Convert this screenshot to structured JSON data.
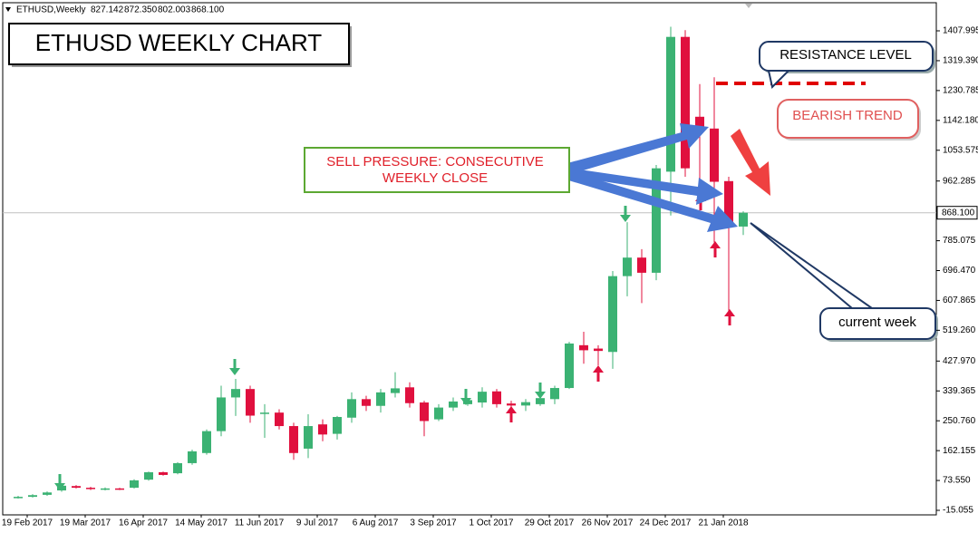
{
  "chart_data": {
    "type": "candlestick",
    "symbol": "ETHUSD,Weekly",
    "ohlc_readout": [
      827.142,
      {
        "value": 872.35,
        "label": "872.350"
      },
      802.003,
      {
        "value": 868.1,
        "label": "868.100"
      }
    ],
    "title": "ETHUSD WEEKLY CHART",
    "annotations": [
      "RESISTANCE LEVEL",
      "BEARISH TREND",
      "SELL PRESSURE: CONSECUTIVE",
      "WEEKLY CLOSE",
      "current week"
    ],
    "categories": [
      null,
      "19 Feb 2017",
      null,
      null,
      null,
      "19 Mar 2017",
      null,
      null,
      null,
      "16 Apr 2017",
      null,
      null,
      null,
      "14 May 2017",
      null,
      null,
      null,
      "11 Jun 2017",
      null,
      null,
      null,
      "9 Jul 2017",
      null,
      null,
      null,
      "6 Aug 2017",
      null,
      null,
      null,
      "3 Sep 2017",
      null,
      null,
      null,
      "1 Oct 2017",
      null,
      null,
      null,
      "29 Oct 2017",
      null,
      null,
      null,
      "26 Nov 2017",
      null,
      null,
      null,
      "24 Dec 2017",
      null,
      null,
      null,
      "21 Jan 2018",
      null
    ],
    "open": [
      22,
      25,
      31,
      44,
      57,
      52,
      47,
      50,
      52,
      76,
      98,
      95,
      125,
      155,
      220,
      320,
      345,
      272,
      275,
      235,
      168,
      240,
      212,
      260,
      315,
      295,
      333,
      350,
      305,
      255,
      290,
      300,
      305,
      338,
      302,
      296,
      300,
      315,
      348,
      475,
      465,
      455,
      680,
      735,
      690,
      990,
      1390,
      1153,
      1118,
      962,
      827.142
    ],
    "high": [
      28,
      33,
      41,
      62,
      60,
      55,
      53,
      52,
      77,
      100,
      100,
      128,
      165,
      225,
      355,
      375,
      355,
      300,
      285,
      245,
      270,
      255,
      265,
      335,
      325,
      345,
      395,
      365,
      310,
      300,
      320,
      318,
      350,
      345,
      310,
      315,
      325,
      355,
      485,
      515,
      475,
      695,
      840,
      760,
      1010,
      1420,
      1410,
      1250,
      1270,
      975,
      872.35
    ],
    "low": [
      20,
      23,
      28,
      40,
      50,
      45,
      44,
      45,
      50,
      73,
      88,
      92,
      120,
      150,
      205,
      265,
      245,
      200,
      225,
      135,
      140,
      190,
      195,
      245,
      280,
      275,
      320,
      290,
      205,
      250,
      280,
      295,
      290,
      290,
      285,
      280,
      295,
      300,
      345,
      420,
      415,
      405,
      620,
      600,
      668,
      860,
      975,
      870,
      780,
      570,
      802.003
    ],
    "close": [
      25,
      30,
      38,
      58,
      52,
      48,
      50,
      48,
      74,
      98,
      90,
      125,
      160,
      220,
      320,
      345,
      266,
      275,
      235,
      155,
      235,
      210,
      262,
      315,
      295,
      335,
      347,
      303,
      250,
      290,
      308,
      312,
      337,
      300,
      296,
      306,
      318,
      348,
      480,
      460,
      458,
      680,
      735,
      690,
      1000,
      1390,
      1000,
      1118,
      960,
      830,
      868.1
    ],
    "up_color": "#3bb273",
    "down_color": "#e0103e",
    "last_price": {
      "value": 868.1,
      "label": "868.100"
    },
    "ylim": [
      -28.5,
      1491.4
    ],
    "yticks": [
      1407.995,
      {
        "value": 1319.39,
        "label": "1319.390"
      },
      1230.785,
      {
        "value": 1142.18,
        "label": "1142.180"
      },
      1053.575,
      962.285,
      785.075,
      {
        "value": 696.47,
        "label": "696.470"
      },
      607.865,
      {
        "value": 519.26,
        "label": "519.260"
      },
      {
        "value": 427.97,
        "label": "427.970"
      },
      339.365,
      {
        "value": 250.76,
        "label": "250.760"
      },
      162.155,
      {
        "value": 73.55,
        "label": "73.550"
      },
      -15.055
    ],
    "grid": false
  }
}
